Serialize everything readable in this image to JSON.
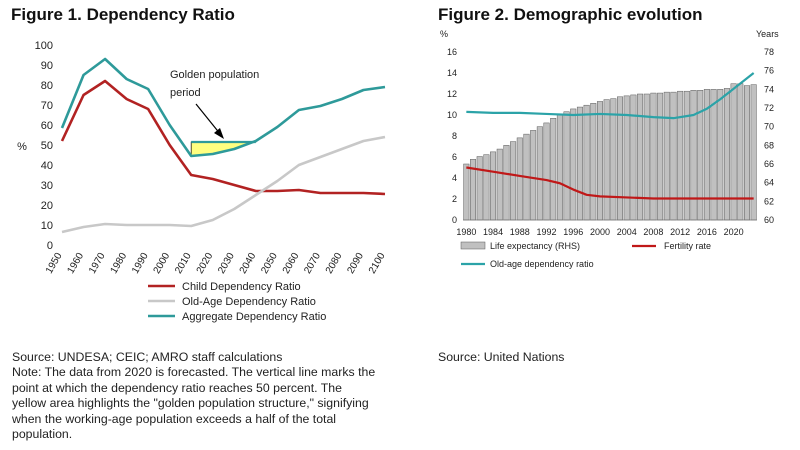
{
  "figure1": {
    "title": "Figure 1. Dependency Ratio",
    "annotation": [
      "Golden population",
      "period"
    ],
    "source": "Source: UNDESA; CEIC; AMRO staff calculations",
    "note_lines": [
      "Note: The data from 2020 is forecasted. The vertical line marks the",
      "point at which the dependency ratio reaches 50 percent. The",
      "yellow area highlights the \"golden population structure,\" signifying",
      "when the working-age population exceeds a half of the total",
      "population."
    ]
  },
  "figure2": {
    "title": "Figure 2. Demographic evolution",
    "source": "Source: United Nations"
  },
  "chart_data": [
    {
      "type": "line",
      "title": "Figure 1. Dependency Ratio",
      "ylabel": "%",
      "ylim": [
        0,
        100
      ],
      "yticks": [
        0,
        10,
        20,
        30,
        40,
        50,
        60,
        70,
        80,
        90,
        100
      ],
      "x": [
        1950,
        1960,
        1970,
        1980,
        1990,
        2000,
        2010,
        2020,
        2030,
        2040,
        2050,
        2060,
        2070,
        2080,
        2090,
        2100
      ],
      "x_tick_labels": [
        "1950",
        "1960",
        "1970",
        "1980",
        "1990",
        "2000",
        "2010",
        "2020",
        "2030",
        "2040",
        "2050",
        "2060",
        "2070",
        "2080",
        "2090",
        "2100"
      ],
      "series": [
        {
          "name": "Child Dependency Ratio",
          "color": "#b22222",
          "values": [
            52,
            75,
            82,
            73,
            68,
            50,
            35,
            33,
            30,
            27,
            27,
            27.5,
            26,
            26,
            26,
            25.5
          ]
        },
        {
          "name": "Old-Age Dependency Ratio",
          "color": "#c8c8c8",
          "values": [
            6.5,
            9,
            10.5,
            10,
            10,
            10,
            9.5,
            12.5,
            18,
            25,
            32,
            40,
            44,
            48,
            52,
            54
          ]
        },
        {
          "name": "Aggregate Dependency Ratio",
          "color": "#2e9a9a",
          "values": [
            58.5,
            85,
            93,
            83,
            78,
            60,
            44.5,
            45.5,
            48,
            52,
            59,
            67.5,
            69.5,
            73,
            77.5,
            79
          ]
        }
      ],
      "shaded_region": {
        "label": "Golden population period",
        "color": "#ffff80",
        "x_range": [
          2010,
          2040
        ],
        "upper": 51.5
      },
      "legend_position": "bottom",
      "grid": false
    },
    {
      "type": "bar+line",
      "title": "Figure 2. Demographic evolution",
      "ylabel_left": "%",
      "ylabel_right": "Years",
      "ylim_left": [
        0,
        16
      ],
      "yticks_left": [
        0,
        2,
        4,
        6,
        8,
        10,
        12,
        14,
        16
      ],
      "ylim_right": [
        60,
        78
      ],
      "yticks_right": [
        60,
        62,
        64,
        66,
        68,
        70,
        72,
        74,
        76,
        78
      ],
      "x_start": 1980,
      "x_end": 2023,
      "x_tick_labels": [
        "1980",
        "1984",
        "1988",
        "1992",
        "1996",
        "2000",
        "2004",
        "2008",
        "2012",
        "2016",
        "2020"
      ],
      "bars": {
        "name": "Life expectancy (RHS)",
        "axis": "right",
        "color": "#c0c0c0",
        "values": [
          66.0,
          66.5,
          66.8,
          67.0,
          67.3,
          67.6,
          68.0,
          68.4,
          68.8,
          69.2,
          69.6,
          70.0,
          70.4,
          70.9,
          71.3,
          71.6,
          71.9,
          72.1,
          72.3,
          72.5,
          72.7,
          72.9,
          73.0,
          73.2,
          73.3,
          73.4,
          73.5,
          73.5,
          73.6,
          73.6,
          73.7,
          73.7,
          73.8,
          73.8,
          73.9,
          73.9,
          74.0,
          74.0,
          74.0,
          74.1,
          74.6,
          74.6,
          74.4,
          74.5
        ]
      },
      "series": [
        {
          "name": "Fertility rate",
          "axis": "left",
          "color": "#c01818",
          "x": [
            1980,
            1984,
            1988,
            1992,
            1994,
            1996,
            1998,
            2000,
            2004,
            2008,
            2012,
            2016,
            2020,
            2023
          ],
          "values": [
            5.0,
            4.6,
            4.2,
            3.8,
            3.5,
            2.9,
            2.4,
            2.25,
            2.15,
            2.05,
            2.05,
            2.05,
            2.05,
            2.05
          ]
        },
        {
          "name": "Old-age dependency ratio",
          "axis": "left",
          "color": "#2ba3a8",
          "x": [
            1980,
            1984,
            1988,
            1992,
            1996,
            2000,
            2004,
            2008,
            2011,
            2014,
            2016,
            2018,
            2020,
            2023
          ],
          "values": [
            10.3,
            10.2,
            10.2,
            10.1,
            10.0,
            10.1,
            10.0,
            9.8,
            9.7,
            10.0,
            10.6,
            11.5,
            12.5,
            14.0
          ]
        }
      ],
      "legend_position": "bottom",
      "grid": false
    }
  ]
}
